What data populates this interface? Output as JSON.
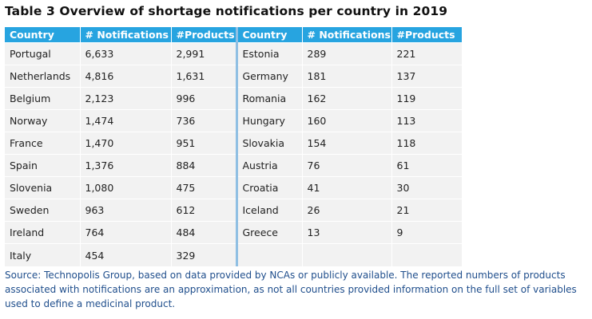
{
  "title": "Table 3 Overview of shortage notifications per country in 2019",
  "columns": {
    "country": "Country",
    "notifications": "# Notifications",
    "products": "#Products"
  },
  "left_rows": [
    {
      "country": "Portugal",
      "notifications": "6,633",
      "products": "2,991"
    },
    {
      "country": "Netherlands",
      "notifications": "4,816",
      "products": "1,631"
    },
    {
      "country": "Belgium",
      "notifications": "2,123",
      "products": "996"
    },
    {
      "country": "Norway",
      "notifications": "1,474",
      "products": "736"
    },
    {
      "country": "France",
      "notifications": "1,470",
      "products": "951"
    },
    {
      "country": "Spain",
      "notifications": "1,376",
      "products": "884"
    },
    {
      "country": "Slovenia",
      "notifications": "1,080",
      "products": "475"
    },
    {
      "country": "Sweden",
      "notifications": "963",
      "products": "612"
    },
    {
      "country": "Ireland",
      "notifications": "764",
      "products": "484"
    },
    {
      "country": "Italy",
      "notifications": "454",
      "products": "329"
    }
  ],
  "right_rows": [
    {
      "country": "Estonia",
      "notifications": "289",
      "products": "221"
    },
    {
      "country": "Germany",
      "notifications": "181",
      "products": "137"
    },
    {
      "country": "Romania",
      "notifications": "162",
      "products": "119"
    },
    {
      "country": "Hungary",
      "notifications": "160",
      "products": "113"
    },
    {
      "country": "Slovakia",
      "notifications": "154",
      "products": "118"
    },
    {
      "country": "Austria",
      "notifications": "76",
      "products": "61"
    },
    {
      "country": "Croatia",
      "notifications": "41",
      "products": "30"
    },
    {
      "country": "Iceland",
      "notifications": "26",
      "products": "21"
    },
    {
      "country": "Greece",
      "notifications": "13",
      "products": "9"
    },
    {
      "country": "",
      "notifications": "",
      "products": ""
    }
  ],
  "source": "Source: Technopolis Group, based on data provided by NCAs or publicly available. The reported numbers of products associated with notifications are an approximation, as not all countries provided information on the full set of variables used to define a medicinal product.",
  "colors": {
    "header_bg": "#27a4e0",
    "row_bg": "#f2f2f2",
    "separator": "#8fbfe3",
    "source_text": "#1f4e8c"
  }
}
